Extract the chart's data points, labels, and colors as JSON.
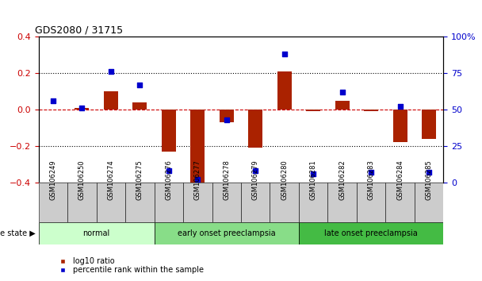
{
  "title": "GDS2080 / 31715",
  "samples": [
    "GSM106249",
    "GSM106250",
    "GSM106274",
    "GSM106275",
    "GSM106276",
    "GSM106277",
    "GSM106278",
    "GSM106279",
    "GSM106280",
    "GSM106281",
    "GSM106282",
    "GSM106283",
    "GSM106284",
    "GSM106285"
  ],
  "log10_ratio": [
    0.0,
    0.01,
    0.1,
    0.04,
    -0.23,
    -0.41,
    -0.07,
    -0.21,
    0.21,
    -0.01,
    0.05,
    -0.01,
    -0.18,
    -0.16
  ],
  "percentile_rank": [
    56,
    51,
    76,
    67,
    8,
    2,
    43,
    8,
    88,
    6,
    62,
    7,
    52,
    7
  ],
  "groups": [
    {
      "label": "normal",
      "start": 0,
      "end": 3,
      "color": "#ccffcc"
    },
    {
      "label": "early onset preeclampsia",
      "start": 4,
      "end": 8,
      "color": "#88dd88"
    },
    {
      "label": "late onset preeclampsia",
      "start": 9,
      "end": 13,
      "color": "#44bb44"
    }
  ],
  "ylim_left": [
    -0.4,
    0.4
  ],
  "ylim_right": [
    0,
    100
  ],
  "yticks_left": [
    -0.4,
    -0.2,
    0.0,
    0.2,
    0.4
  ],
  "yticks_right": [
    0,
    25,
    50,
    75,
    100
  ],
  "ytick_labels_right": [
    "0",
    "25",
    "50",
    "75",
    "100%"
  ],
  "bar_color": "#aa2200",
  "dot_color": "#0000cc",
  "zero_line_color": "#cc0000",
  "grid_color": "#000000",
  "left_tick_color": "#cc0000",
  "right_tick_color": "#0000cc",
  "legend_log10": "log10 ratio",
  "legend_pct": "percentile rank within the sample",
  "disease_state_label": "disease state",
  "sample_label_bg": "#cccccc",
  "bar_width": 0.5,
  "dot_size": 25
}
